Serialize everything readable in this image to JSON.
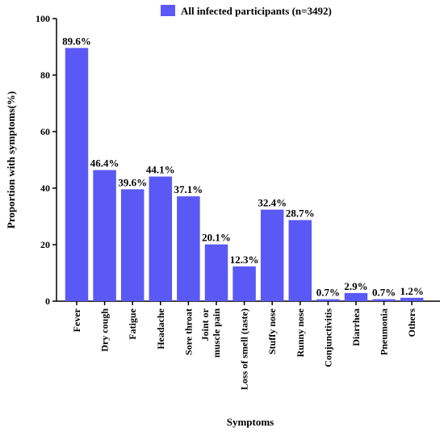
{
  "chart_data": {
    "type": "bar",
    "title": "",
    "xlabel": "Symptoms",
    "ylabel": "Proportion with symptoms(%)",
    "ylim": [
      0,
      100
    ],
    "yticks": [
      0,
      20,
      40,
      60,
      80,
      100
    ],
    "grid": false,
    "legend_position": "top-right",
    "series": [
      {
        "name": "All infected participants  (n=3492)",
        "color": "#5b59f5",
        "values": [
          89.6,
          46.4,
          39.6,
          44.1,
          37.1,
          20.1,
          12.3,
          32.4,
          28.7,
          0.7,
          2.9,
          0.7,
          1.2
        ],
        "labels": [
          "89.6%",
          "46.4%",
          "39.6%",
          "44.1%",
          "37.1%",
          "20.1%",
          "12.3%",
          "32.4%",
          "28.7%",
          "0.7%",
          "2.9%",
          "0.7%",
          "1.2%"
        ]
      }
    ],
    "categories": [
      [
        "Fever"
      ],
      [
        "Dry cough"
      ],
      [
        "Fatigue"
      ],
      [
        "Headache"
      ],
      [
        "Sore throat"
      ],
      [
        "Joint or",
        "muscle pain"
      ],
      [
        "Loss of smell (taste)"
      ],
      [
        "Stuffy nose"
      ],
      [
        "Runny nose"
      ],
      [
        "Conjunctivitis"
      ],
      [
        "Diarrhea"
      ],
      [
        "Pneumonia"
      ],
      [
        "Others"
      ]
    ]
  }
}
